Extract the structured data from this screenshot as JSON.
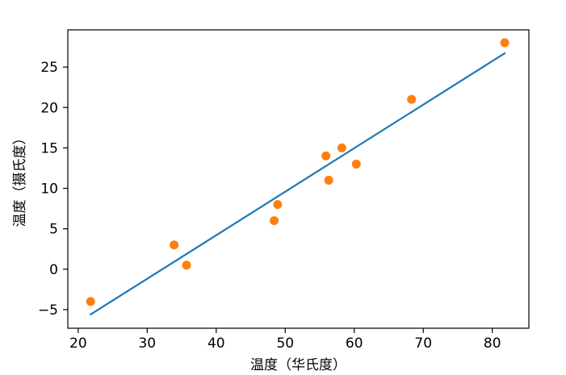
{
  "colors": {
    "line": "#1f77b4",
    "points": "#ff7f0e",
    "axes": "#000000",
    "background": "#ffffff"
  },
  "chart_data": {
    "type": "scatter",
    "title": "",
    "xlabel": "温度（华氏度）",
    "ylabel": "温度（摄氏度）",
    "xlim": [
      18.5,
      85.3
    ],
    "ylim": [
      -7.3,
      29.6
    ],
    "xticks": [
      20,
      30,
      40,
      50,
      60,
      70,
      80
    ],
    "yticks": [
      -5,
      0,
      5,
      10,
      15,
      20,
      25
    ],
    "grid": false,
    "series": [
      {
        "kind": "scatter",
        "x": [
          21.8,
          33.9,
          35.7,
          48.4,
          48.9,
          55.9,
          56.3,
          58.2,
          60.3,
          68.3,
          81.8
        ],
        "y": [
          -4.0,
          3.0,
          0.5,
          6.0,
          8.0,
          14.0,
          11.0,
          15.0,
          13.0,
          21.0,
          28.0
        ]
      },
      {
        "kind": "line",
        "x": [
          21.8,
          81.8
        ],
        "y": [
          -5.6,
          26.7
        ]
      }
    ]
  }
}
